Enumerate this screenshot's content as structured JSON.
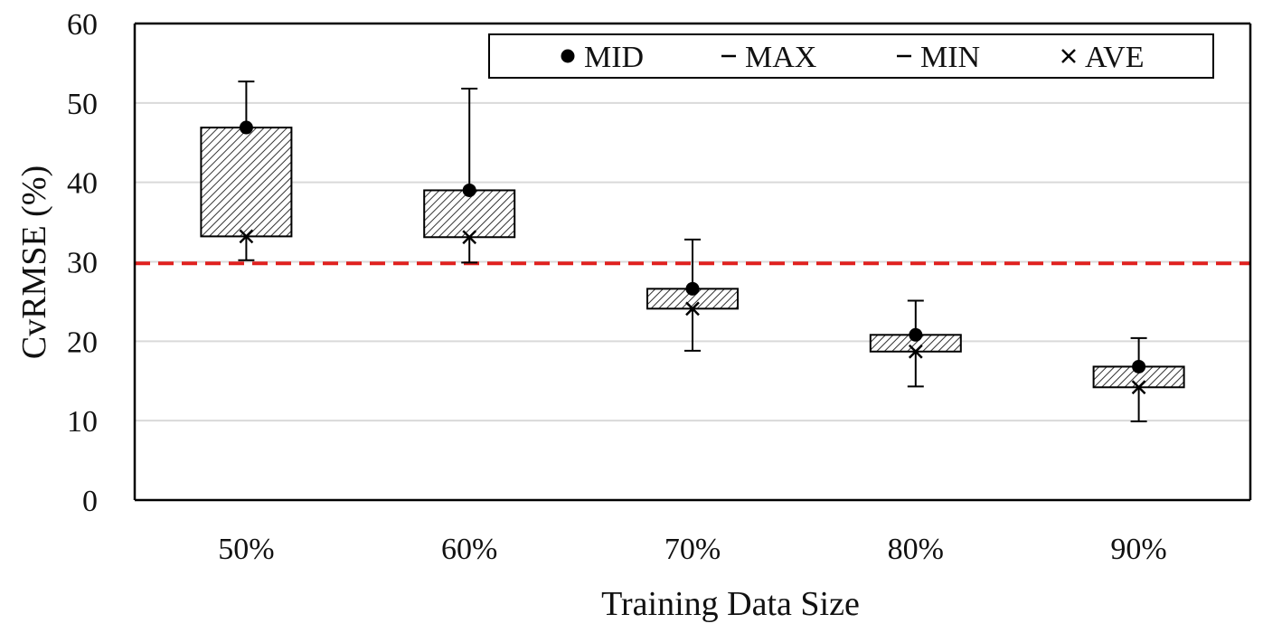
{
  "chart_data": {
    "type": "box",
    "xlabel": "Training Data Size",
    "ylabel": "CvRMSE (%)",
    "ylim": [
      0,
      60
    ],
    "yticks": [
      "0",
      "10",
      "20",
      "30",
      "40",
      "50",
      "60"
    ],
    "categories": [
      "50%",
      "60%",
      "70%",
      "80%",
      "90%"
    ],
    "boxes": [
      {
        "category": "50%",
        "box_low": 33.2,
        "box_high": 46.9,
        "min": 30.2,
        "max": 52.7,
        "mid": 46.9,
        "ave": 33.2
      },
      {
        "category": "60%",
        "box_low": 33.1,
        "box_high": 39.0,
        "min": 29.9,
        "max": 51.8,
        "mid": 39.0,
        "ave": 33.1
      },
      {
        "category": "70%",
        "box_low": 24.1,
        "box_high": 26.6,
        "min": 18.8,
        "max": 32.8,
        "mid": 26.6,
        "ave": 24.1
      },
      {
        "category": "80%",
        "box_low": 18.7,
        "box_high": 20.8,
        "min": 14.3,
        "max": 25.1,
        "mid": 20.8,
        "ave": 18.7
      },
      {
        "category": "90%",
        "box_low": 14.2,
        "box_high": 16.8,
        "min": 9.9,
        "max": 20.4,
        "mid": 16.8,
        "ave": 14.2
      }
    ],
    "reference_line": {
      "value": 29.8,
      "color": "#e0211f",
      "style": "dashed"
    },
    "legend": {
      "placement": "top-right",
      "entries": [
        {
          "marker": "dot",
          "label": "MID"
        },
        {
          "marker": "dash",
          "label": "MAX"
        },
        {
          "marker": "dash",
          "label": "MIN"
        },
        {
          "marker": "cross",
          "label": "AVE"
        }
      ]
    },
    "grid": true,
    "colors": {
      "box_fill": "#ffffff",
      "hatch": "#333333",
      "grid": "#d9d9d9",
      "axis": "#000000"
    }
  }
}
